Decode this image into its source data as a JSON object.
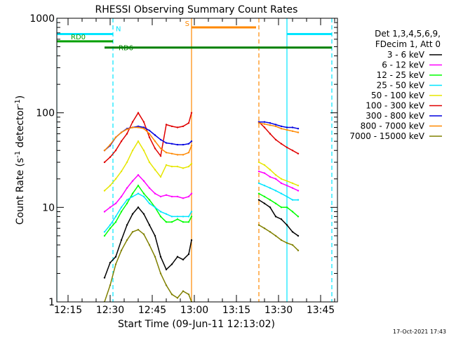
{
  "chart_data": {
    "type": "line",
    "title": "RHESSI Observing Summary Count Rates",
    "xlabel": "Start Time (09-Jun-11 12:13:02)",
    "ylabel": "Count Rate (s⁻¹ detector⁻¹)",
    "ylabel_parts": {
      "main": "Count Rate (s",
      "sup1": "-1",
      "mid": " detector",
      "sup2": "-1",
      "end": ")"
    },
    "y_scale": "log",
    "ylim": [
      1,
      1000
    ],
    "xlim": [
      "12:11",
      "13:51"
    ],
    "x_ticks": [
      "12:15",
      "12:30",
      "12:45",
      "13:00",
      "13:15",
      "13:30",
      "13:45"
    ],
    "y_ticks": [
      "1",
      "10",
      "100",
      "1000"
    ],
    "grid": false,
    "legend_position": "right",
    "legend_header": [
      "Det 1,3,4,5,6,9,",
      "FDecim 1, Att 0"
    ],
    "footer_date": "17-Oct-2021 17:43",
    "series": [
      {
        "name": "3 - 6 keV",
        "color": "#000000",
        "segments": [
          [
            [
              "12:28",
              1.8
            ],
            [
              "12:30",
              2.6
            ],
            [
              "12:32",
              3.0
            ],
            [
              "12:34",
              4.5
            ],
            [
              "12:36",
              6.5
            ],
            [
              "12:38",
              8.5
            ],
            [
              "12:40",
              10.0
            ],
            [
              "12:42",
              8.5
            ],
            [
              "12:44",
              6.5
            ],
            [
              "12:46",
              5.0
            ],
            [
              "12:48",
              3.0
            ],
            [
              "12:50",
              2.2
            ],
            [
              "12:52",
              2.5
            ],
            [
              "12:54",
              3.0
            ],
            [
              "12:56",
              2.8
            ],
            [
              "12:58",
              3.2
            ],
            [
              "12:59",
              4.5
            ]
          ],
          [
            [
              "13:23",
              12.0
            ],
            [
              "13:25",
              11.0
            ],
            [
              "13:27",
              10.0
            ],
            [
              "13:29",
              8.0
            ],
            [
              "13:31",
              7.5
            ],
            [
              "13:33",
              6.5
            ],
            [
              "13:35",
              5.5
            ],
            [
              "13:37",
              5.0
            ]
          ]
        ]
      },
      {
        "name": "6 - 12 keV",
        "color": "#ff00ff",
        "segments": [
          [
            [
              "12:28",
              9.0
            ],
            [
              "12:30",
              10.0
            ],
            [
              "12:32",
              11.0
            ],
            [
              "12:34",
              13.0
            ],
            [
              "12:36",
              16.0
            ],
            [
              "12:38",
              19.0
            ],
            [
              "12:40",
              22.0
            ],
            [
              "12:42",
              19.0
            ],
            [
              "12:44",
              16.0
            ],
            [
              "12:46",
              14.0
            ],
            [
              "12:48",
              13.0
            ],
            [
              "12:50",
              13.5
            ],
            [
              "12:52",
              13.0
            ],
            [
              "12:54",
              13.0
            ],
            [
              "12:56",
              12.5
            ],
            [
              "12:58",
              13.0
            ],
            [
              "12:59",
              14.0
            ]
          ],
          [
            [
              "13:23",
              24.0
            ],
            [
              "13:25",
              23.0
            ],
            [
              "13:27",
              21.0
            ],
            [
              "13:29",
              20.0
            ],
            [
              "13:31",
              18.0
            ],
            [
              "13:33",
              17.0
            ],
            [
              "13:35",
              16.0
            ],
            [
              "13:37",
              15.0
            ]
          ]
        ]
      },
      {
        "name": "12 - 25 keV",
        "color": "#00ff00",
        "segments": [
          [
            [
              "12:28",
              5.0
            ],
            [
              "12:30",
              6.0
            ],
            [
              "12:32",
              7.0
            ],
            [
              "12:34",
              9.0
            ],
            [
              "12:36",
              11.0
            ],
            [
              "12:38",
              14.0
            ],
            [
              "12:40",
              17.0
            ],
            [
              "12:42",
              14.0
            ],
            [
              "12:44",
              12.0
            ],
            [
              "12:46",
              10.0
            ],
            [
              "12:48",
              8.0
            ],
            [
              "12:50",
              7.0
            ],
            [
              "12:52",
              7.0
            ],
            [
              "12:54",
              7.5
            ],
            [
              "12:56",
              7.0
            ],
            [
              "12:58",
              7.0
            ],
            [
              "12:59",
              8.0
            ]
          ],
          [
            [
              "13:23",
              14.0
            ],
            [
              "13:25",
              13.0
            ],
            [
              "13:27",
              12.0
            ],
            [
              "13:29",
              11.0
            ],
            [
              "13:31",
              10.0
            ],
            [
              "13:33",
              10.0
            ],
            [
              "13:35",
              9.0
            ],
            [
              "13:37",
              8.0
            ]
          ]
        ]
      },
      {
        "name": "25 - 50 keV",
        "color": "#00e5ff",
        "segments": [
          [
            [
              "12:28",
              5.5
            ],
            [
              "12:30",
              6.5
            ],
            [
              "12:32",
              8.0
            ],
            [
              "12:34",
              10.0
            ],
            [
              "12:36",
              12.0
            ],
            [
              "12:38",
              13.0
            ],
            [
              "12:40",
              14.0
            ],
            [
              "12:42",
              13.0
            ],
            [
              "12:44",
              11.0
            ],
            [
              "12:46",
              10.0
            ],
            [
              "12:48",
              9.0
            ],
            [
              "12:50",
              8.5
            ],
            [
              "12:52",
              8.0
            ],
            [
              "12:54",
              8.0
            ],
            [
              "12:56",
              8.0
            ],
            [
              "12:58",
              8.0
            ],
            [
              "12:59",
              9.0
            ]
          ],
          [
            [
              "13:23",
              18.0
            ],
            [
              "13:25",
              17.0
            ],
            [
              "13:27",
              16.0
            ],
            [
              "13:29",
              15.0
            ],
            [
              "13:31",
              14.0
            ],
            [
              "13:33",
              13.0
            ],
            [
              "13:35",
              12.0
            ],
            [
              "13:37",
              12.0
            ]
          ]
        ]
      },
      {
        "name": "50 - 100 keV",
        "color": "#e6e600",
        "segments": [
          [
            [
              "12:28",
              15.0
            ],
            [
              "12:30",
              17.0
            ],
            [
              "12:32",
              20.0
            ],
            [
              "12:34",
              24.0
            ],
            [
              "12:36",
              30.0
            ],
            [
              "12:38",
              40.0
            ],
            [
              "12:40",
              50.0
            ],
            [
              "12:42",
              40.0
            ],
            [
              "12:44",
              30.0
            ],
            [
              "12:46",
              25.0
            ],
            [
              "12:48",
              21.0
            ],
            [
              "12:50",
              28.0
            ],
            [
              "12:52",
              27.0
            ],
            [
              "12:54",
              27.0
            ],
            [
              "12:56",
              26.0
            ],
            [
              "12:58",
              27.0
            ],
            [
              "12:59",
              29.0
            ]
          ],
          [
            [
              "13:23",
              30.0
            ],
            [
              "13:25",
              28.0
            ],
            [
              "13:27",
              25.0
            ],
            [
              "13:29",
              22.0
            ],
            [
              "13:31",
              20.0
            ],
            [
              "13:33",
              19.0
            ],
            [
              "13:35",
              18.0
            ],
            [
              "13:37",
              17.0
            ]
          ]
        ]
      },
      {
        "name": "100 - 300 keV",
        "color": "#e00000",
        "segments": [
          [
            [
              "12:28",
              30.0
            ],
            [
              "12:30",
              34.0
            ],
            [
              "12:32",
              40.0
            ],
            [
              "12:34",
              50.0
            ],
            [
              "12:36",
              60.0
            ],
            [
              "12:38",
              80.0
            ],
            [
              "12:40",
              100.0
            ],
            [
              "12:42",
              80.0
            ],
            [
              "12:44",
              55.0
            ],
            [
              "12:46",
              42.0
            ],
            [
              "12:48",
              35.0
            ],
            [
              "12:50",
              75.0
            ],
            [
              "12:52",
              72.0
            ],
            [
              "12:54",
              70.0
            ],
            [
              "12:56",
              72.0
            ],
            [
              "12:58",
              78.0
            ],
            [
              "12:59",
              100.0
            ]
          ],
          [
            [
              "13:23",
              80.0
            ],
            [
              "13:25",
              70.0
            ],
            [
              "13:27",
              60.0
            ],
            [
              "13:29",
              52.0
            ],
            [
              "13:31",
              47.0
            ],
            [
              "13:33",
              43.0
            ],
            [
              "13:35",
              40.0
            ],
            [
              "13:37",
              37.0
            ]
          ]
        ]
      },
      {
        "name": "300 - 800 keV",
        "color": "#0000e0",
        "segments": [
          [
            [
              "12:28",
              40.0
            ],
            [
              "12:30",
              45.0
            ],
            [
              "12:32",
              55.0
            ],
            [
              "12:34",
              62.0
            ],
            [
              "12:36",
              68.0
            ],
            [
              "12:38",
              70.0
            ],
            [
              "12:40",
              72.0
            ],
            [
              "12:42",
              70.0
            ],
            [
              "12:44",
              65.0
            ],
            [
              "12:46",
              58.0
            ],
            [
              "12:48",
              52.0
            ],
            [
              "12:50",
              48.0
            ],
            [
              "12:52",
              47.0
            ],
            [
              "12:54",
              46.0
            ],
            [
              "12:56",
              46.0
            ],
            [
              "12:58",
              47.0
            ],
            [
              "12:59",
              50.0
            ]
          ],
          [
            [
              "13:23",
              80.0
            ],
            [
              "13:25",
              80.0
            ],
            [
              "13:27",
              78.0
            ],
            [
              "13:29",
              75.0
            ],
            [
              "13:31",
              72.0
            ],
            [
              "13:33",
              70.0
            ],
            [
              "13:35",
              70.0
            ],
            [
              "13:37",
              68.0
            ]
          ]
        ]
      },
      {
        "name": "800 - 7000 keV",
        "color": "#ff8800",
        "segments": [
          [
            [
              "12:28",
              40.0
            ],
            [
              "12:30",
              46.0
            ],
            [
              "12:32",
              55.0
            ],
            [
              "12:34",
              62.0
            ],
            [
              "12:36",
              67.0
            ],
            [
              "12:38",
              70.0
            ],
            [
              "12:40",
              70.0
            ],
            [
              "12:42",
              68.0
            ],
            [
              "12:44",
              60.0
            ],
            [
              "12:46",
              50.0
            ],
            [
              "12:48",
              42.0
            ],
            [
              "12:50",
              38.0
            ],
            [
              "12:52",
              37.0
            ],
            [
              "12:54",
              36.0
            ],
            [
              "12:56",
              36.0
            ],
            [
              "12:58",
              38.0
            ],
            [
              "12:59",
              45.0
            ]
          ],
          [
            [
              "13:23",
              78.0
            ],
            [
              "13:25",
              76.0
            ],
            [
              "13:27",
              74.0
            ],
            [
              "13:29",
              72.0
            ],
            [
              "13:31",
              68.0
            ],
            [
              "13:33",
              66.0
            ],
            [
              "13:35",
              64.0
            ],
            [
              "13:37",
              62.0
            ]
          ]
        ]
      },
      {
        "name": "7000 - 15000 keV",
        "color": "#808000",
        "segments": [
          [
            [
              "12:28",
              1.0
            ],
            [
              "12:30",
              1.5
            ],
            [
              "12:32",
              2.5
            ],
            [
              "12:34",
              3.5
            ],
            [
              "12:36",
              4.5
            ],
            [
              "12:38",
              5.5
            ],
            [
              "12:40",
              5.8
            ],
            [
              "12:42",
              5.2
            ],
            [
              "12:44",
              4.0
            ],
            [
              "12:46",
              3.0
            ],
            [
              "12:48",
              2.0
            ],
            [
              "12:50",
              1.5
            ],
            [
              "12:52",
              1.2
            ],
            [
              "12:54",
              1.1
            ],
            [
              "12:56",
              1.3
            ],
            [
              "12:58",
              1.2
            ],
            [
              "12:59",
              1.0
            ]
          ],
          [
            [
              "13:23",
              6.5
            ],
            [
              "13:25",
              6.0
            ],
            [
              "13:27",
              5.5
            ],
            [
              "13:29",
              5.0
            ],
            [
              "13:31",
              4.5
            ],
            [
              "13:33",
              4.2
            ],
            [
              "13:35",
              4.0
            ],
            [
              "13:37",
              3.5
            ]
          ]
        ]
      }
    ],
    "vertical_markers": [
      {
        "color": "#00e5ff",
        "style": "solid",
        "x": "12:11"
      },
      {
        "color": "#00e5ff",
        "style": "dashed",
        "x": "12:31"
      },
      {
        "color": "#ff8800",
        "style": "solid",
        "x": "12:59"
      },
      {
        "color": "#ff8800",
        "style": "dashed",
        "x": "13:23"
      },
      {
        "color": "#00e5ff",
        "style": "solid",
        "x": "13:33"
      },
      {
        "color": "#00e5ff",
        "style": "dashed",
        "x": "13:49"
      }
    ],
    "flag_bars": [
      {
        "color": "#00e5ff",
        "y": 680,
        "label": "N",
        "segments": [
          [
            "12:11",
            "12:31"
          ],
          [
            "13:33",
            "13:49"
          ]
        ]
      },
      {
        "color": "#00a000",
        "y": 570,
        "label": "RD0",
        "segments": [
          [
            "12:11",
            "12:31"
          ]
        ]
      },
      {
        "color": "#008000",
        "y": 490,
        "label": "RD6",
        "segments": [
          [
            "12:28",
            "12:51"
          ],
          [
            "12:51",
            "13:23"
          ],
          [
            "13:23",
            "13:36"
          ],
          [
            "13:36",
            "13:49"
          ]
        ]
      },
      {
        "color": "#ff8800",
        "y": 800,
        "label": "S",
        "segments": [
          [
            "12:59",
            "13:22"
          ]
        ]
      }
    ]
  }
}
